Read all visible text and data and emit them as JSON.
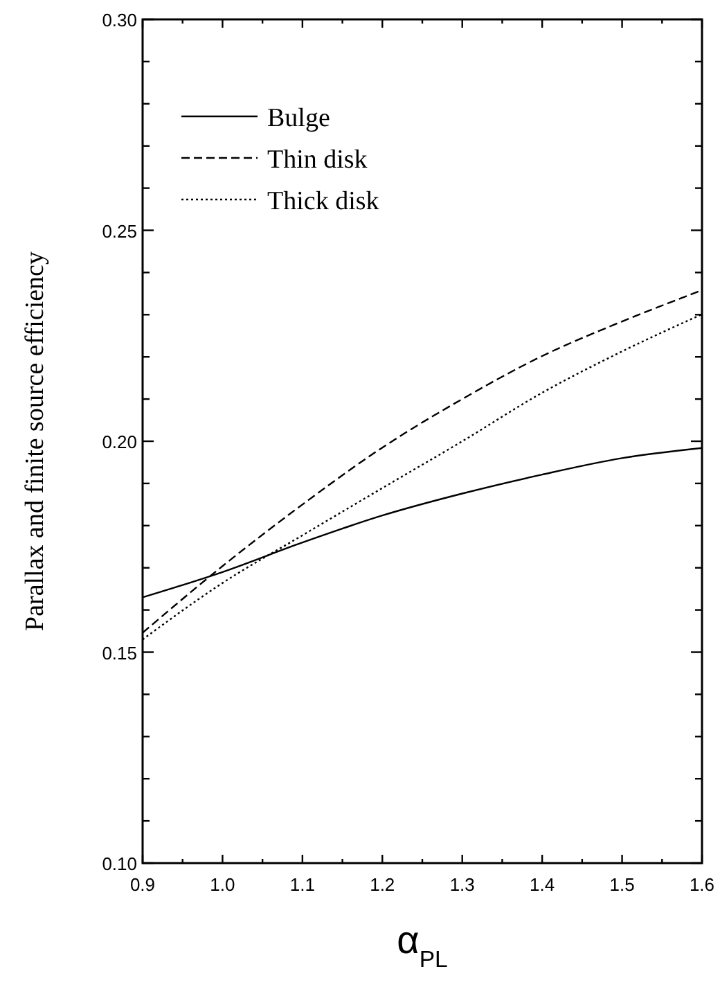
{
  "chart_data": {
    "type": "line",
    "xlabel": "α$_{PL}$",
    "ylabel": "Parallax and finite source efficiency",
    "x": [
      0.9,
      1.0,
      1.1,
      1.2,
      1.3,
      1.4,
      1.5,
      1.6
    ],
    "series": [
      {
        "name": "Bulge",
        "color": "#000000",
        "line_style": "solid",
        "values": [
          0.163,
          0.169,
          0.176,
          0.1824,
          0.1876,
          0.1921,
          0.196,
          0.1984
        ]
      },
      {
        "name": "Thin disk",
        "color": "#000000",
        "line_style": "dashed",
        "values": [
          0.1546,
          0.1704,
          0.185,
          0.1985,
          0.21,
          0.2202,
          0.2284,
          0.2358
        ]
      },
      {
        "name": "Thick disk",
        "color": "#000000",
        "line_style": "dotted",
        "values": [
          0.153,
          0.1664,
          0.1777,
          0.1889,
          0.2,
          0.2115,
          0.2213,
          0.2301
        ]
      }
    ],
    "xlim": [
      0.9,
      1.6
    ],
    "xticks": [
      0.9,
      {
        "value": 0.95,
        "label": null
      },
      "1.0",
      {
        "value": 1.05,
        "label": null
      },
      1.1,
      {
        "value": 1.15,
        "label": null
      },
      1.2,
      {
        "value": 1.25,
        "label": null
      },
      1.3,
      {
        "value": 1.35,
        "label": null
      },
      1.4,
      {
        "value": 1.45,
        "label": null
      },
      1.5,
      {
        "value": 1.55,
        "label": null
      },
      1.6
    ],
    "ylim": [
      0.1,
      0.3
    ],
    "yticks": [
      {
        "value": 0.1,
        "label": "0.10"
      },
      {
        "value": 0.11,
        "label": null
      },
      {
        "value": 0.12,
        "label": null
      },
      {
        "value": 0.13,
        "label": null
      },
      {
        "value": 0.14,
        "label": null
      },
      0.15,
      {
        "value": 0.16,
        "label": null
      },
      {
        "value": 0.17,
        "label": null
      },
      {
        "value": 0.18,
        "label": null
      },
      {
        "value": 0.19,
        "label": null
      },
      {
        "value": 0.2,
        "label": "0.20"
      },
      {
        "value": 0.21,
        "label": null
      },
      {
        "value": 0.22,
        "label": null
      },
      {
        "value": 0.23,
        "label": null
      },
      {
        "value": 0.24,
        "label": null
      },
      0.25,
      {
        "value": 0.26,
        "label": null
      },
      {
        "value": 0.27,
        "label": null
      },
      {
        "value": 0.28,
        "label": null
      },
      {
        "value": 0.29,
        "label": null
      },
      {
        "value": 0.3,
        "label": "0.30"
      }
    ],
    "legend": "top left",
    "grid": false
  }
}
